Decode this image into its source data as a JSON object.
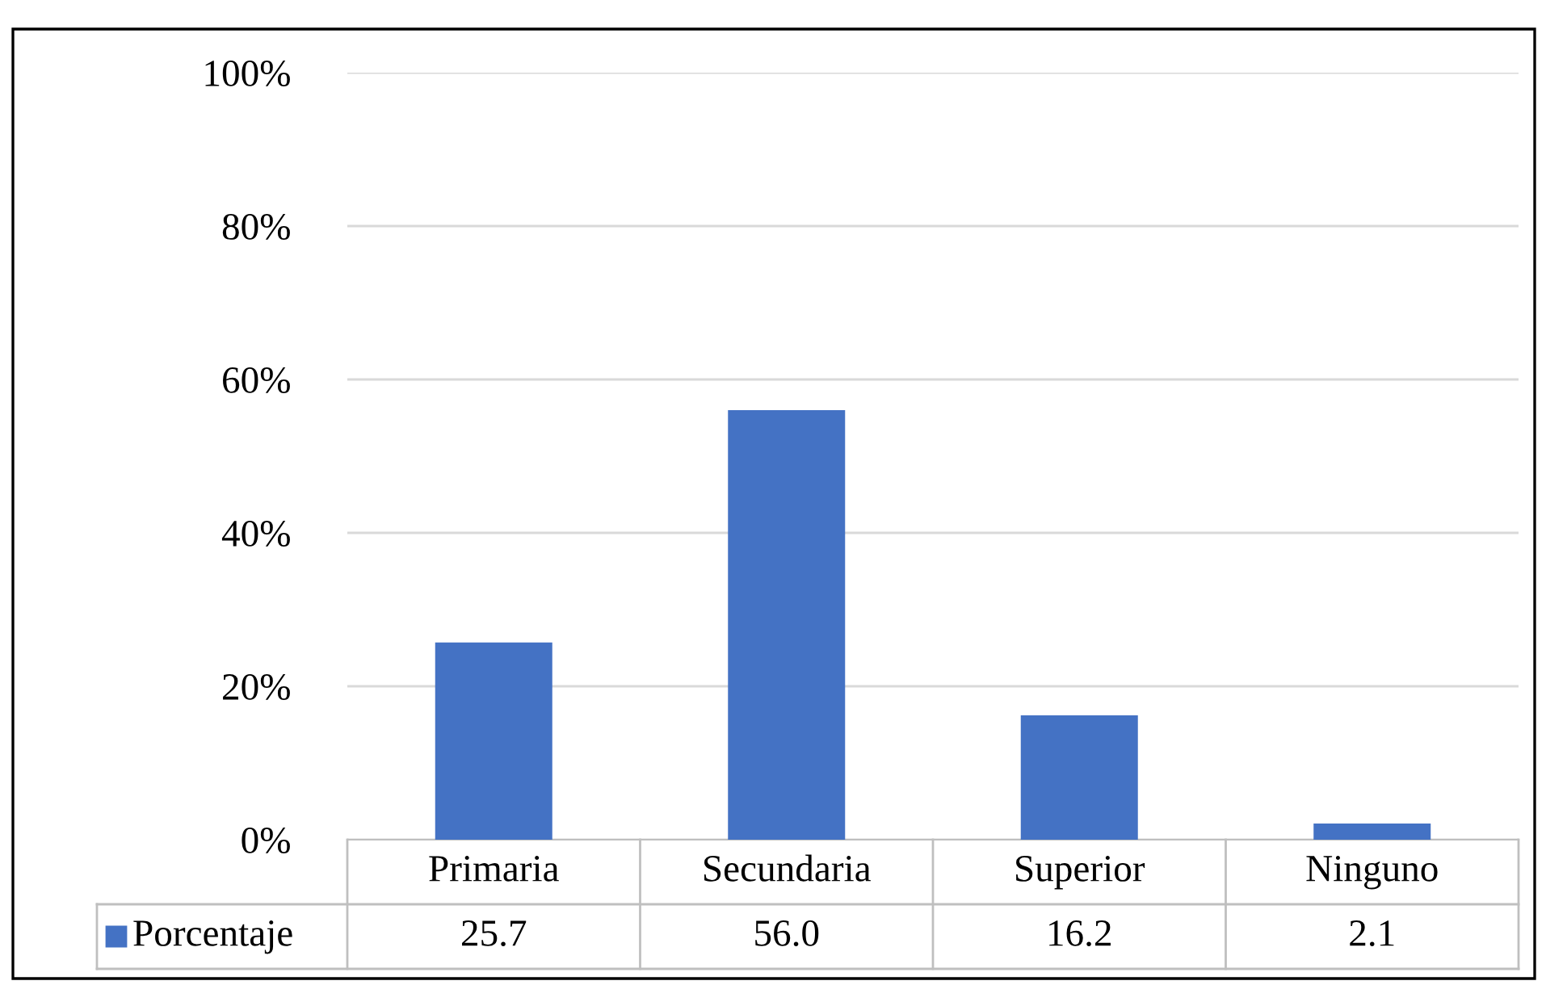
{
  "chart_data": {
    "type": "bar",
    "categories": [
      "Primaria",
      "Secundaria",
      "Superior",
      "Ninguno"
    ],
    "series": [
      {
        "name": "Porcentaje",
        "color": "#4472c4",
        "values": [
          25.7,
          56.0,
          16.2,
          2.1
        ],
        "value_labels": [
          "25.7",
          "56.0",
          "16.2",
          "2.1"
        ]
      }
    ],
    "ylim": [
      0,
      100
    ],
    "yticks": [
      {
        "value": 0,
        "label": "0%"
      },
      {
        "value": 20,
        "label": "20%"
      },
      {
        "value": 40,
        "label": "40%"
      },
      {
        "value": 60,
        "label": "60%"
      },
      {
        "value": 80,
        "label": "80%"
      },
      {
        "value": 100,
        "label": "100%"
      }
    ],
    "grid": "y",
    "legend": "bottom"
  }
}
